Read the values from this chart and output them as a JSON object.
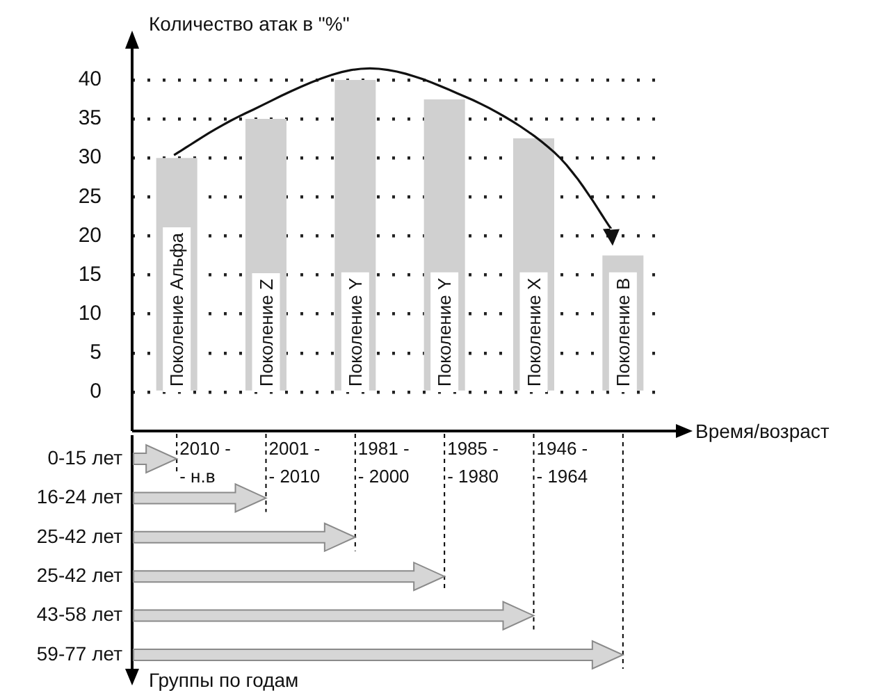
{
  "chart_data": {
    "type": "bar",
    "ylabel": "Количество атак в \"%\"",
    "xlabel": "Время/возраст",
    "categories": [
      "Поколение Альфа",
      "Поколение Z",
      "Поколение Y",
      "Поколение Y",
      "Поколение X",
      "Поколение В"
    ],
    "values": [
      30,
      35,
      40,
      37.5,
      32.5,
      17.5
    ],
    "color": "#d0d0d0",
    "ylim": [
      -5,
      44
    ],
    "yticks": [
      0,
      5,
      10,
      15,
      20,
      25,
      30,
      35,
      40
    ],
    "grid": "y",
    "annotations": [
      "2010 -\n- н.в",
      "2001 -\n- 2010",
      "1981 -\n- 2000",
      "1985 -\n- 1980",
      "1946 -\n- 1964",
      "0-15 лет",
      "16-24 лет",
      "25-42 лет",
      "25-42 лет",
      "43-58 лет",
      "59-77 лет",
      "Группы по годам"
    ]
  }
}
